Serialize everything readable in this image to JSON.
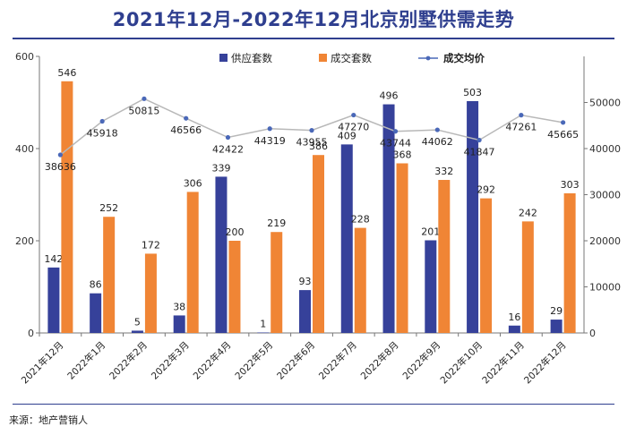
{
  "title": "2021年12月-2022年12月北京别墅供需走势",
  "source": "来源：地产营销人",
  "colors": {
    "supply": "#36419a",
    "deal": "#f08535",
    "price": "#4a68b8",
    "title": "#2f3f8f",
    "axis": "#777777"
  },
  "chart_data": {
    "type": "bar",
    "categories": [
      "2021年12月",
      "2022年1月",
      "2022年2月",
      "2022年3月",
      "2022年4月",
      "2022年5月",
      "2022年6月",
      "2022年7月",
      "2022年8月",
      "2022年9月",
      "2022年10月",
      "2022年11月",
      "2022年12月"
    ],
    "series": [
      {
        "name": "供应套数",
        "type": "bar",
        "axis": "left",
        "values": [
          142,
          86,
          5,
          38,
          339,
          1,
          93,
          409,
          496,
          201,
          503,
          16,
          29
        ]
      },
      {
        "name": "成交套数",
        "type": "bar",
        "axis": "left",
        "values": [
          546,
          252,
          172,
          306,
          200,
          219,
          386,
          228,
          368,
          332,
          292,
          242,
          303
        ]
      },
      {
        "name": "成交均价",
        "type": "line",
        "axis": "right",
        "values": [
          38636,
          45918,
          50815,
          46566,
          42422,
          44319,
          43955,
          47270,
          43744,
          44062,
          41847,
          47261,
          45665
        ]
      }
    ],
    "ylim": [
      0,
      600
    ],
    "yticks": [
      "0",
      "200",
      "400",
      "600"
    ],
    "y2lim": [
      0,
      60000
    ],
    "y2ticks": [
      "0",
      "10000",
      "20000",
      "30000",
      "40000",
      "50000"
    ],
    "legend": "top-center"
  }
}
